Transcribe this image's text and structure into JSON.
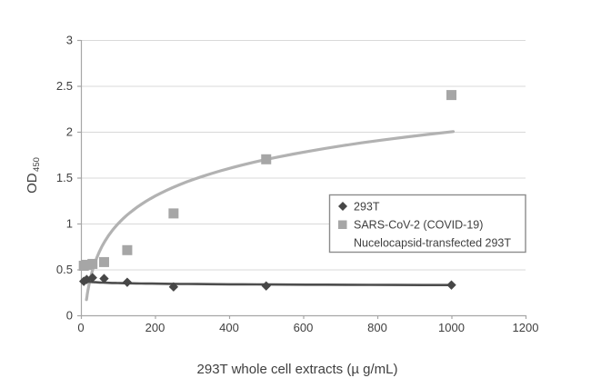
{
  "chart_data": {
    "type": "scatter",
    "title": "",
    "xlabel": "293T whole cell extracts (µ g/mL)",
    "ylabel": "OD",
    "ylabel_sub": "450",
    "xlim": [
      0,
      1200
    ],
    "ylim": [
      0,
      3
    ],
    "xticks": [
      0,
      200,
      400,
      600,
      800,
      1000,
      1200
    ],
    "xtick_labels": [
      "0",
      "200",
      "400",
      "600",
      "800",
      "1000",
      "1200"
    ],
    "yticks": [
      0,
      0.5,
      1,
      1.5,
      2,
      2.5,
      3
    ],
    "ytick_labels": [
      "0",
      "0.5",
      "1",
      "1.5",
      "2",
      "2.5",
      "3"
    ],
    "grid": "horizontal-only",
    "gridline_color": "#d9d9d9",
    "axis_color": "#a6a6a6",
    "text_color": "#3f3f3f",
    "legend_position": "inside-middle-right",
    "series": [
      {
        "name": "SARS-CoV-2 (COVID-19) Nucelocapsid-transfected 293T",
        "marker": "square",
        "color": "#a6a6a6",
        "x": [
          7.8,
          15.6,
          31.2,
          62.5,
          125,
          250,
          500,
          1000
        ],
        "y": [
          0.54,
          0.55,
          0.56,
          0.58,
          0.71,
          1.11,
          1.7,
          2.4
        ],
        "trendline": {
          "type": "logarithmic",
          "a": 0.4357,
          "b": -1.01,
          "x_start": 15,
          "x_end": 1005,
          "color": "#b2b2b2",
          "width": 3.2
        }
      },
      {
        "name": "293T",
        "marker": "diamond",
        "color": "#474747",
        "x": [
          7.8,
          15.6,
          31.2,
          62.5,
          125,
          250,
          500,
          1000
        ],
        "y": [
          0.37,
          0.39,
          0.41,
          0.4,
          0.36,
          0.31,
          0.32,
          0.33
        ],
        "trendline": {
          "type": "logarithmic",
          "a": -0.0095,
          "b": 0.395,
          "x_start": 7,
          "x_end": 1000,
          "color": "#4d4d4d",
          "width": 2.6
        }
      }
    ],
    "legend": {
      "line1": "293T",
      "line2": "SARS-CoV-2 (COVID-19)",
      "line3": "Nucelocapsid-transfected 293T",
      "border_color": "#8c8c8c"
    }
  }
}
